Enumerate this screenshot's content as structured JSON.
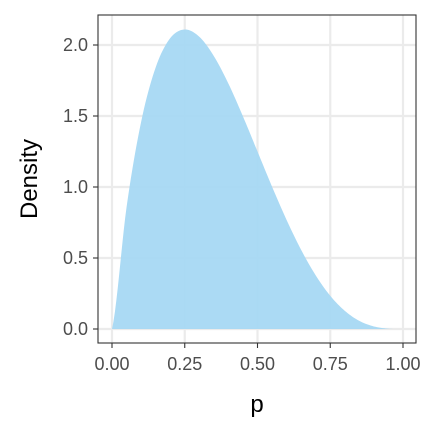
{
  "chart_data": {
    "type": "area",
    "distribution": "Beta(2, 4)",
    "xlabel": "p",
    "ylabel": "Density",
    "xlim": [
      0,
      1
    ],
    "ylim": [
      0,
      2.1
    ],
    "x_ticks": [
      0,
      0.25,
      0.5,
      0.75,
      1
    ],
    "x_tick_labels": [
      "0.00",
      "0.25",
      "0.50",
      "0.75",
      "1.00"
    ],
    "y_ticks": [
      0,
      0.5,
      1,
      1.5,
      2
    ],
    "y_tick_labels": [
      "0.0",
      "0.5",
      "1.0",
      "1.5",
      "2.0"
    ],
    "grid": true,
    "series": [
      {
        "color": "#a6d8f3",
        "x": [
          0,
          0.05,
          0.1,
          0.15,
          0.2,
          0.25,
          0.3,
          0.35,
          0.4,
          0.45,
          0.5,
          0.55,
          0.6,
          0.65,
          0.7,
          0.75,
          0.8,
          0.85,
          0.9,
          0.95,
          1
        ],
        "y": [
          0,
          0.857,
          1.458,
          1.842,
          2.048,
          2.109,
          2.058,
          1.922,
          1.728,
          1.497,
          1.25,
          1.002,
          0.768,
          0.557,
          0.378,
          0.234,
          0.128,
          0.057,
          0.018,
          0.002,
          0
        ]
      }
    ],
    "colors": {
      "panel_border": "#333333",
      "grid_major": "#ebebeb",
      "tick": "#333333"
    }
  }
}
